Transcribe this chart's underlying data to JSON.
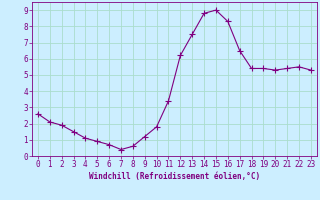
{
  "x": [
    0,
    1,
    2,
    3,
    4,
    5,
    6,
    7,
    8,
    9,
    10,
    11,
    12,
    13,
    14,
    15,
    16,
    17,
    18,
    19,
    20,
    21,
    22,
    23
  ],
  "y": [
    2.6,
    2.1,
    1.9,
    1.5,
    1.1,
    0.9,
    0.7,
    0.4,
    0.6,
    1.2,
    1.8,
    3.4,
    6.2,
    7.5,
    8.8,
    9.0,
    8.3,
    6.5,
    5.4,
    5.4,
    5.3,
    5.4,
    5.5,
    5.3
  ],
  "line_color": "#800080",
  "marker": "D",
  "marker_size": 2.0,
  "bg_color": "#cceeff",
  "grid_color": "#aaddcc",
  "xlabel": "Windchill (Refroidissement éolien,°C)",
  "ylabel": "",
  "xlim": [
    -0.5,
    23.5
  ],
  "ylim": [
    0,
    9.5
  ],
  "yticks": [
    0,
    1,
    2,
    3,
    4,
    5,
    6,
    7,
    8,
    9
  ],
  "xticks": [
    0,
    1,
    2,
    3,
    4,
    5,
    6,
    7,
    8,
    9,
    10,
    11,
    12,
    13,
    14,
    15,
    16,
    17,
    18,
    19,
    20,
    21,
    22,
    23
  ],
  "tick_color": "#800080",
  "label_color": "#800080",
  "spine_color": "#800080",
  "tick_fontsize": 5.5,
  "xlabel_fontsize": 5.5,
  "title": ""
}
